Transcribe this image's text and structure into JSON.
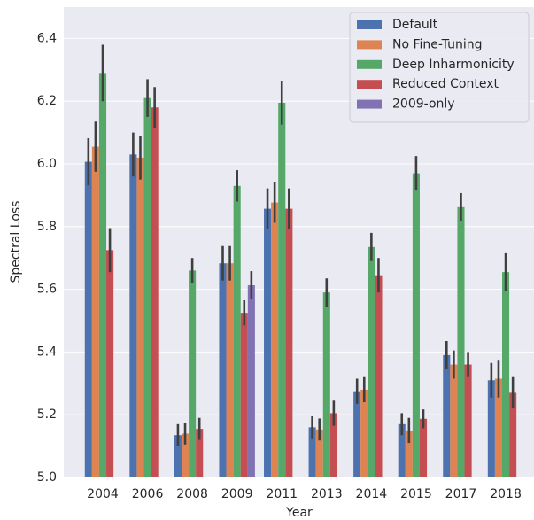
{
  "chart_data": {
    "type": "bar",
    "xlabel": "Year",
    "ylabel": "Spectral Loss",
    "categories": [
      "2004",
      "2006",
      "2008",
      "2009",
      "2011",
      "2013",
      "2014",
      "2015",
      "2017",
      "2018"
    ],
    "series": [
      {
        "name": "Default",
        "color": "#4c72b0",
        "values": [
          6.007,
          6.03,
          5.135,
          5.683,
          5.857,
          5.16,
          5.275,
          5.17,
          5.39,
          5.31
        ],
        "errors": [
          0.075,
          0.07,
          0.035,
          0.055,
          0.065,
          0.035,
          0.04,
          0.035,
          0.045,
          0.055
        ]
      },
      {
        "name": "No Fine-Tuning",
        "color": "#dd8452",
        "values": [
          6.055,
          6.02,
          5.14,
          5.683,
          5.877,
          5.153,
          5.28,
          5.15,
          5.36,
          5.315
        ],
        "errors": [
          0.08,
          0.07,
          0.035,
          0.055,
          0.065,
          0.035,
          0.04,
          0.04,
          0.045,
          0.06
        ]
      },
      {
        "name": "Deep Inharmonicity",
        "color": "#55a868",
        "values": [
          6.29,
          6.21,
          5.66,
          5.93,
          6.195,
          5.59,
          5.735,
          5.97,
          5.862,
          5.655
        ],
        "errors": [
          0.09,
          0.06,
          0.04,
          0.05,
          0.07,
          0.045,
          0.045,
          0.055,
          0.045,
          0.06
        ]
      },
      {
        "name": "Reduced Context",
        "color": "#c44e52",
        "values": [
          5.725,
          6.18,
          5.155,
          5.525,
          5.857,
          5.205,
          5.645,
          5.187,
          5.36,
          5.27
        ],
        "errors": [
          0.07,
          0.065,
          0.035,
          0.04,
          0.065,
          0.04,
          0.055,
          0.03,
          0.04,
          0.05
        ]
      },
      {
        "name": "2009-only",
        "color": "#8172b3",
        "values": [
          null,
          null,
          null,
          5.613,
          null,
          null,
          null,
          null,
          null,
          null
        ],
        "errors": [
          null,
          null,
          null,
          0.045,
          null,
          null,
          null,
          null,
          null,
          null
        ]
      }
    ],
    "ylim": [
      5.0,
      6.5
    ],
    "yticks": [
      {
        "value": 5,
        "label": "5.0"
      },
      5.2,
      5.4,
      5.6,
      5.8,
      {
        "value": 6,
        "label": "6.0"
      },
      6.2,
      6.4
    ],
    "grid": true,
    "legend": "upper right"
  }
}
